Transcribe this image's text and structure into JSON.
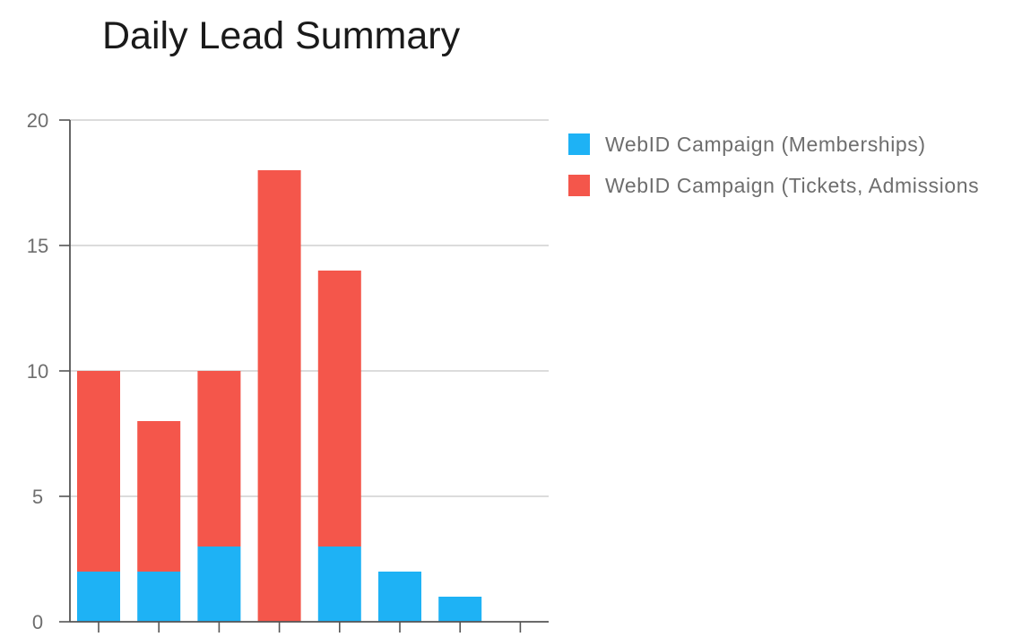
{
  "chart_data": {
    "type": "bar",
    "stacked": true,
    "title": "Daily Lead Summary",
    "xlabel": "",
    "ylabel": "",
    "categories": [
      "",
      "",
      "",
      "",
      "",
      "",
      "",
      ""
    ],
    "ylim": [
      0,
      20
    ],
    "yticks": [
      "0",
      "5",
      "10",
      "15",
      "20"
    ],
    "grid": true,
    "legend_position": "right",
    "series": [
      {
        "name": "WebID Campaign (Memberships)",
        "color": "#1eb2f5",
        "values": [
          2,
          2,
          3,
          0,
          3,
          2,
          1,
          0
        ]
      },
      {
        "name": "WebID Campaign (Tickets, Admissions",
        "color": "#f4564b",
        "values": [
          8,
          6,
          7,
          18,
          11,
          0,
          0,
          0
        ]
      }
    ]
  }
}
